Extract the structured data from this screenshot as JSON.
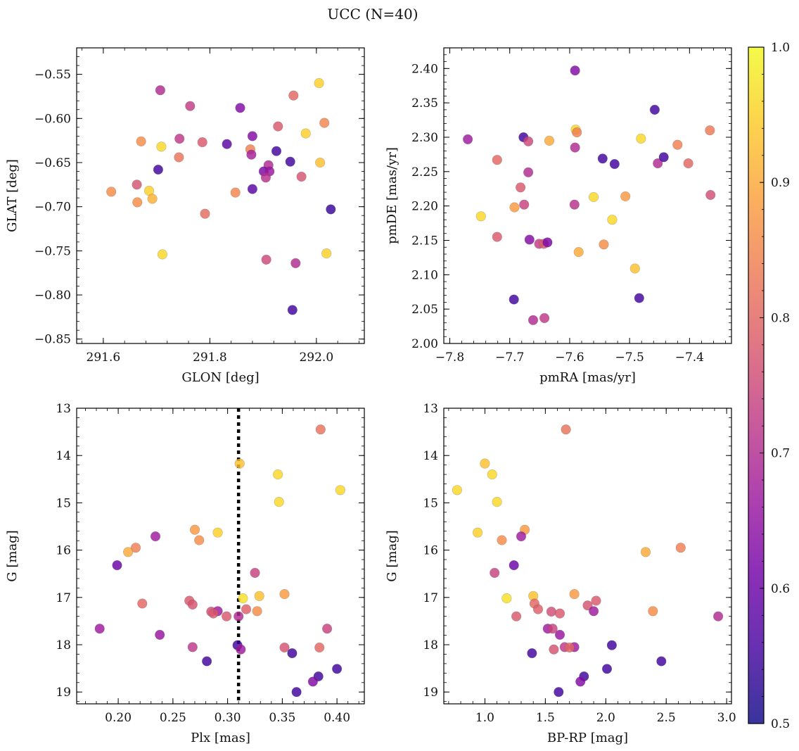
{
  "figure": {
    "title": "UCC (N=40)",
    "colorbar": {
      "min": 0.5,
      "max": 1.0,
      "ticks": [
        "0.5",
        "0.6",
        "0.7",
        "0.8",
        "0.9",
        "1.0"
      ],
      "colormap_stops": [
        "#0d0887",
        "#46039f",
        "#7201a8",
        "#9c179e",
        "#bd3786",
        "#d8576b",
        "#ed7953",
        "#fb9f3a",
        "#fdca26",
        "#f0f921"
      ]
    },
    "dashed_line_color": "#000000"
  },
  "chart_data": [
    {
      "type": "scatter",
      "id": "glon-glat",
      "xlabel": "GLON [deg]",
      "ylabel": "GLAT [deg]",
      "xlim": [
        291.55,
        292.09
      ],
      "ylim": [
        -0.855,
        -0.52
      ],
      "y_inverted": false,
      "xticks": [
        291.6,
        291.8,
        292.0
      ],
      "xtick_labels": [
        "291.6",
        "291.8",
        "292.0"
      ],
      "yticks": [
        -0.85,
        -0.8,
        -0.75,
        -0.7,
        -0.65,
        -0.6,
        -0.55
      ],
      "ytick_labels": [
        "−0.85",
        "−0.80",
        "−0.75",
        "−0.70",
        "−0.65",
        "−0.60",
        "−0.55"
      ],
      "points": [
        {
          "x": 291.707,
          "y": -0.568,
          "c": 0.7
        },
        {
          "x": 291.763,
          "y": -0.586,
          "c": 0.73
        },
        {
          "x": 291.857,
          "y": -0.588,
          "c": 0.63
        },
        {
          "x": 291.957,
          "y": -0.574,
          "c": 0.8
        },
        {
          "x": 292.005,
          "y": -0.56,
          "c": 0.95
        },
        {
          "x": 291.671,
          "y": -0.626,
          "c": 0.86
        },
        {
          "x": 291.709,
          "y": -0.632,
          "c": 0.96
        },
        {
          "x": 291.743,
          "y": -0.623,
          "c": 0.72
        },
        {
          "x": 291.786,
          "y": -0.627,
          "c": 0.78
        },
        {
          "x": 291.832,
          "y": -0.629,
          "c": 0.58
        },
        {
          "x": 291.876,
          "y": -0.635,
          "c": 0.84
        },
        {
          "x": 291.88,
          "y": -0.62,
          "c": 0.63
        },
        {
          "x": 291.928,
          "y": -0.609,
          "c": 0.78
        },
        {
          "x": 291.98,
          "y": -0.617,
          "c": 0.95
        },
        {
          "x": 292.015,
          "y": -0.605,
          "c": 0.85
        },
        {
          "x": 291.742,
          "y": -0.644,
          "c": 0.82
        },
        {
          "x": 291.878,
          "y": -0.641,
          "c": 0.68
        },
        {
          "x": 291.925,
          "y": -0.637,
          "c": 0.55
        },
        {
          "x": 291.951,
          "y": -0.649,
          "c": 0.55
        },
        {
          "x": 292.007,
          "y": -0.65,
          "c": 0.93
        },
        {
          "x": 291.91,
          "y": -0.653,
          "c": 0.7
        },
        {
          "x": 291.901,
          "y": -0.66,
          "c": 0.62
        },
        {
          "x": 291.912,
          "y": -0.66,
          "c": 0.66
        },
        {
          "x": 291.905,
          "y": -0.667,
          "c": 0.71
        },
        {
          "x": 291.703,
          "y": -0.658,
          "c": 0.55
        },
        {
          "x": 291.663,
          "y": -0.675,
          "c": 0.77
        },
        {
          "x": 291.615,
          "y": -0.683,
          "c": 0.86
        },
        {
          "x": 291.686,
          "y": -0.682,
          "c": 0.95
        },
        {
          "x": 291.664,
          "y": -0.695,
          "c": 0.86
        },
        {
          "x": 291.692,
          "y": -0.691,
          "c": 0.91
        },
        {
          "x": 291.848,
          "y": -0.684,
          "c": 0.85
        },
        {
          "x": 291.88,
          "y": -0.68,
          "c": 0.58
        },
        {
          "x": 291.972,
          "y": -0.666,
          "c": 0.77
        },
        {
          "x": 292.027,
          "y": -0.703,
          "c": 0.54
        },
        {
          "x": 291.791,
          "y": -0.708,
          "c": 0.81
        },
        {
          "x": 291.711,
          "y": -0.754,
          "c": 0.96
        },
        {
          "x": 292.019,
          "y": -0.753,
          "c": 0.95
        },
        {
          "x": 291.906,
          "y": -0.76,
          "c": 0.75
        },
        {
          "x": 291.961,
          "y": -0.764,
          "c": 0.7
        },
        {
          "x": 291.955,
          "y": -0.817,
          "c": 0.55
        }
      ]
    },
    {
      "type": "scatter",
      "id": "pmra-pmde",
      "xlabel": "pmRA [mas/yr]",
      "ylabel": "pmDE [mas/yr]",
      "xlim": [
        -7.81,
        -7.33
      ],
      "ylim": [
        2.0,
        2.43
      ],
      "y_inverted": false,
      "xticks": [
        -7.8,
        -7.7,
        -7.6,
        -7.5,
        -7.4
      ],
      "xtick_labels": [
        "−7.8",
        "−7.7",
        "−7.6",
        "−7.5",
        "−7.4"
      ],
      "yticks": [
        2.0,
        2.05,
        2.1,
        2.15,
        2.2,
        2.25,
        2.3,
        2.35,
        2.4
      ],
      "ytick_labels": [
        "2.00",
        "2.05",
        "2.10",
        "2.15",
        "2.20",
        "2.25",
        "2.30",
        "2.35",
        "2.40"
      ],
      "points": [
        {
          "x": -7.591,
          "y": 2.397,
          "c": 0.63
        },
        {
          "x": -7.458,
          "y": 2.34,
          "c": 0.55
        },
        {
          "x": -7.77,
          "y": 2.297,
          "c": 0.67
        },
        {
          "x": -7.677,
          "y": 2.3,
          "c": 0.55
        },
        {
          "x": -7.669,
          "y": 2.294,
          "c": 0.75
        },
        {
          "x": -7.634,
          "y": 2.295,
          "c": 0.9
        },
        {
          "x": -7.59,
          "y": 2.311,
          "c": 0.96
        },
        {
          "x": -7.588,
          "y": 2.307,
          "c": 0.84
        },
        {
          "x": -7.481,
          "y": 2.298,
          "c": 0.96
        },
        {
          "x": -7.42,
          "y": 2.289,
          "c": 0.84
        },
        {
          "x": -7.366,
          "y": 2.31,
          "c": 0.83
        },
        {
          "x": -7.591,
          "y": 2.285,
          "c": 0.7
        },
        {
          "x": -7.721,
          "y": 2.267,
          "c": 0.8
        },
        {
          "x": -7.669,
          "y": 2.249,
          "c": 0.7
        },
        {
          "x": -7.545,
          "y": 2.269,
          "c": 0.55
        },
        {
          "x": -7.525,
          "y": 2.261,
          "c": 0.55
        },
        {
          "x": -7.453,
          "y": 2.262,
          "c": 0.7
        },
        {
          "x": -7.443,
          "y": 2.271,
          "c": 0.55
        },
        {
          "x": -7.402,
          "y": 2.262,
          "c": 0.8
        },
        {
          "x": -7.682,
          "y": 2.227,
          "c": 0.78
        },
        {
          "x": -7.676,
          "y": 2.202,
          "c": 0.74
        },
        {
          "x": -7.692,
          "y": 2.198,
          "c": 0.88
        },
        {
          "x": -7.592,
          "y": 2.202,
          "c": 0.71
        },
        {
          "x": -7.56,
          "y": 2.213,
          "c": 0.96
        },
        {
          "x": -7.507,
          "y": 2.214,
          "c": 0.88
        },
        {
          "x": -7.365,
          "y": 2.216,
          "c": 0.76
        },
        {
          "x": -7.748,
          "y": 2.185,
          "c": 0.96
        },
        {
          "x": -7.529,
          "y": 2.18,
          "c": 0.96
        },
        {
          "x": -7.721,
          "y": 2.155,
          "c": 0.78
        },
        {
          "x": -7.667,
          "y": 2.151,
          "c": 0.63
        },
        {
          "x": -7.651,
          "y": 2.145,
          "c": 0.73
        },
        {
          "x": -7.643,
          "y": 2.145,
          "c": 0.78
        },
        {
          "x": -7.637,
          "y": 2.147,
          "c": 0.62
        },
        {
          "x": -7.585,
          "y": 2.133,
          "c": 0.9
        },
        {
          "x": -7.543,
          "y": 2.144,
          "c": 0.86
        },
        {
          "x": -7.491,
          "y": 2.109,
          "c": 0.93
        },
        {
          "x": -7.693,
          "y": 2.064,
          "c": 0.55
        },
        {
          "x": -7.484,
          "y": 2.066,
          "c": 0.55
        },
        {
          "x": -7.661,
          "y": 2.034,
          "c": 0.7
        },
        {
          "x": -7.642,
          "y": 2.037,
          "c": 0.72
        }
      ]
    },
    {
      "type": "scatter",
      "id": "plx-g",
      "xlabel": "Plx [mas]",
      "ylabel": "G [mag]",
      "xlim": [
        0.162,
        0.425
      ],
      "ylim": [
        13.0,
        19.25
      ],
      "y_inverted": true,
      "vline": {
        "x": 0.31,
        "style": "dotted"
      },
      "xticks": [
        0.2,
        0.25,
        0.3,
        0.35,
        0.4
      ],
      "xtick_labels": [
        "0.20",
        "0.25",
        "0.30",
        "0.35",
        "0.40"
      ],
      "yticks": [
        13,
        14,
        15,
        16,
        17,
        18,
        19
      ],
      "ytick_labels": [
        "13",
        "14",
        "15",
        "16",
        "17",
        "18",
        "19"
      ],
      "points": [
        {
          "x": 0.385,
          "y": 13.45,
          "c": 0.82
        },
        {
          "x": 0.311,
          "y": 14.17,
          "c": 0.93
        },
        {
          "x": 0.346,
          "y": 14.4,
          "c": 0.96
        },
        {
          "x": 0.403,
          "y": 14.73,
          "c": 0.96
        },
        {
          "x": 0.347,
          "y": 14.98,
          "c": 0.96
        },
        {
          "x": 0.27,
          "y": 15.57,
          "c": 0.88
        },
        {
          "x": 0.291,
          "y": 15.63,
          "c": 0.95
        },
        {
          "x": 0.234,
          "y": 15.71,
          "c": 0.67
        },
        {
          "x": 0.274,
          "y": 15.79,
          "c": 0.86
        },
        {
          "x": 0.216,
          "y": 15.95,
          "c": 0.84
        },
        {
          "x": 0.209,
          "y": 16.04,
          "c": 0.9
        },
        {
          "x": 0.199,
          "y": 16.32,
          "c": 0.6
        },
        {
          "x": 0.325,
          "y": 16.48,
          "c": 0.74
        },
        {
          "x": 0.314,
          "y": 17.02,
          "c": 0.97
        },
        {
          "x": 0.329,
          "y": 16.97,
          "c": 0.93
        },
        {
          "x": 0.352,
          "y": 16.93,
          "c": 0.88
        },
        {
          "x": 0.222,
          "y": 17.13,
          "c": 0.8
        },
        {
          "x": 0.265,
          "y": 17.07,
          "c": 0.78
        },
        {
          "x": 0.268,
          "y": 17.15,
          "c": 0.77
        },
        {
          "x": 0.317,
          "y": 17.25,
          "c": 0.79
        },
        {
          "x": 0.327,
          "y": 17.29,
          "c": 0.86
        },
        {
          "x": 0.285,
          "y": 17.3,
          "c": 0.76
        },
        {
          "x": 0.291,
          "y": 17.29,
          "c": 0.67
        },
        {
          "x": 0.287,
          "y": 17.34,
          "c": 0.78
        },
        {
          "x": 0.299,
          "y": 17.4,
          "c": 0.78
        },
        {
          "x": 0.31,
          "y": 17.4,
          "c": 0.7
        },
        {
          "x": 0.183,
          "y": 17.66,
          "c": 0.67
        },
        {
          "x": 0.391,
          "y": 17.66,
          "c": 0.74
        },
        {
          "x": 0.238,
          "y": 17.79,
          "c": 0.66
        },
        {
          "x": 0.268,
          "y": 18.05,
          "c": 0.72
        },
        {
          "x": 0.309,
          "y": 18.01,
          "c": 0.55
        },
        {
          "x": 0.312,
          "y": 18.1,
          "c": 0.67
        },
        {
          "x": 0.352,
          "y": 18.06,
          "c": 0.77
        },
        {
          "x": 0.384,
          "y": 18.06,
          "c": 0.8
        },
        {
          "x": 0.359,
          "y": 18.18,
          "c": 0.55
        },
        {
          "x": 0.281,
          "y": 18.35,
          "c": 0.55
        },
        {
          "x": 0.4,
          "y": 18.51,
          "c": 0.55
        },
        {
          "x": 0.383,
          "y": 18.67,
          "c": 0.55
        },
        {
          "x": 0.378,
          "y": 18.78,
          "c": 0.63
        },
        {
          "x": 0.363,
          "y": 19.0,
          "c": 0.55
        }
      ]
    },
    {
      "type": "scatter",
      "id": "bprp-g",
      "xlabel": "BP-RP [mag]",
      "ylabel": "G [mag]",
      "xlim": [
        0.66,
        3.04
      ],
      "ylim": [
        13.0,
        19.25
      ],
      "y_inverted": true,
      "xticks": [
        1.0,
        1.5,
        2.0,
        2.5,
        3.0
      ],
      "xtick_labels": [
        "1.0",
        "1.5",
        "2.0",
        "2.5",
        "3.0"
      ],
      "yticks": [
        13,
        14,
        15,
        16,
        17,
        18,
        19
      ],
      "ytick_labels": [
        "13",
        "14",
        "15",
        "16",
        "17",
        "18",
        "19"
      ],
      "points": [
        {
          "x": 1.67,
          "y": 13.45,
          "c": 0.82
        },
        {
          "x": 1.0,
          "y": 14.17,
          "c": 0.93
        },
        {
          "x": 1.06,
          "y": 14.4,
          "c": 0.96
        },
        {
          "x": 0.77,
          "y": 14.73,
          "c": 0.96
        },
        {
          "x": 1.1,
          "y": 14.98,
          "c": 0.96
        },
        {
          "x": 0.94,
          "y": 15.63,
          "c": 0.95
        },
        {
          "x": 1.33,
          "y": 15.57,
          "c": 0.88
        },
        {
          "x": 1.3,
          "y": 15.71,
          "c": 0.67
        },
        {
          "x": 1.14,
          "y": 15.79,
          "c": 0.86
        },
        {
          "x": 2.62,
          "y": 15.95,
          "c": 0.84
        },
        {
          "x": 2.33,
          "y": 16.04,
          "c": 0.9
        },
        {
          "x": 1.24,
          "y": 16.32,
          "c": 0.6
        },
        {
          "x": 1.08,
          "y": 16.48,
          "c": 0.74
        },
        {
          "x": 1.18,
          "y": 17.02,
          "c": 0.97
        },
        {
          "x": 1.4,
          "y": 16.97,
          "c": 0.93
        },
        {
          "x": 1.74,
          "y": 16.93,
          "c": 0.88
        },
        {
          "x": 1.41,
          "y": 17.13,
          "c": 0.8
        },
        {
          "x": 1.92,
          "y": 17.07,
          "c": 0.78
        },
        {
          "x": 1.85,
          "y": 17.17,
          "c": 0.77
        },
        {
          "x": 1.44,
          "y": 17.25,
          "c": 0.79
        },
        {
          "x": 2.39,
          "y": 17.29,
          "c": 0.86
        },
        {
          "x": 1.55,
          "y": 17.3,
          "c": 0.76
        },
        {
          "x": 1.9,
          "y": 17.29,
          "c": 0.67
        },
        {
          "x": 1.62,
          "y": 17.34,
          "c": 0.78
        },
        {
          "x": 1.26,
          "y": 17.4,
          "c": 0.78
        },
        {
          "x": 2.93,
          "y": 17.4,
          "c": 0.7
        },
        {
          "x": 1.52,
          "y": 17.66,
          "c": 0.67
        },
        {
          "x": 1.56,
          "y": 17.66,
          "c": 0.74
        },
        {
          "x": 1.62,
          "y": 17.79,
          "c": 0.66
        },
        {
          "x": 1.66,
          "y": 18.05,
          "c": 0.72
        },
        {
          "x": 2.05,
          "y": 18.01,
          "c": 0.55
        },
        {
          "x": 1.74,
          "y": 18.05,
          "c": 0.67
        },
        {
          "x": 1.57,
          "y": 18.1,
          "c": 0.77
        },
        {
          "x": 1.7,
          "y": 18.06,
          "c": 0.8
        },
        {
          "x": 1.39,
          "y": 18.18,
          "c": 0.55
        },
        {
          "x": 2.46,
          "y": 18.35,
          "c": 0.55
        },
        {
          "x": 2.01,
          "y": 18.51,
          "c": 0.55
        },
        {
          "x": 1.82,
          "y": 18.67,
          "c": 0.55
        },
        {
          "x": 1.79,
          "y": 18.78,
          "c": 0.63
        },
        {
          "x": 1.61,
          "y": 19.0,
          "c": 0.55
        }
      ]
    }
  ]
}
